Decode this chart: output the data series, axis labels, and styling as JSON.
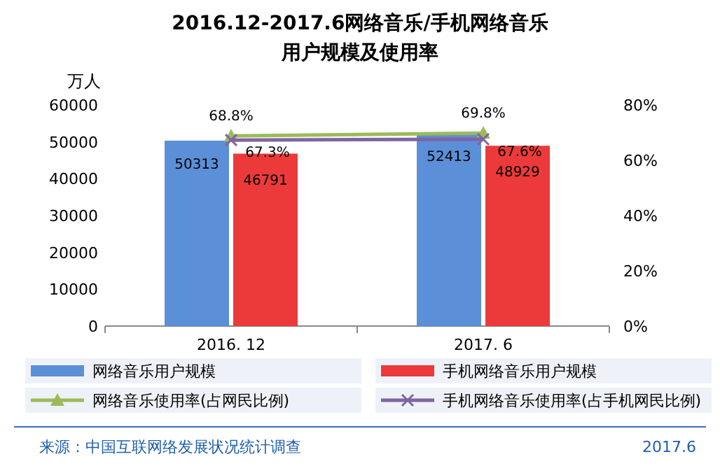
{
  "chart_data": {
    "type": "bar",
    "title": "2016.12-2017.6网络音乐/手机网络音乐",
    "subtitle": "用户规模及使用率",
    "ylabel": "万人",
    "categories": [
      "2016. 12",
      "2017. 6"
    ],
    "series": [
      {
        "name": "网络音乐用户规模",
        "color": "#5b8fd8",
        "values": [
          50313,
          52413
        ],
        "value_labels": [
          "50313",
          "52413"
        ]
      },
      {
        "name": "手机网络音乐用户规模",
        "color": "#ec3a3a",
        "values": [
          46791,
          48929
        ],
        "value_labels": [
          "46791",
          "48929"
        ]
      },
      {
        "name": "网络音乐使用率(占网民比例)",
        "type": "line",
        "axis": "y2",
        "marker": "triangle",
        "color": "#9bbb59",
        "values": [
          68.8,
          69.8
        ],
        "value_labels": [
          "68.8%",
          "69.8%"
        ]
      },
      {
        "name": "手机网络音乐使用率(占手机网民比例)",
        "type": "line",
        "axis": "y2",
        "marker": "cross",
        "color": "#8064a2",
        "values": [
          67.3,
          67.6
        ],
        "value_labels": [
          "67.3%",
          "67.6%"
        ]
      }
    ],
    "ylim": [
      0,
      60000
    ],
    "yticks": [
      0,
      10000,
      20000,
      30000,
      40000,
      50000,
      60000
    ],
    "y2lim": [
      0,
      80
    ],
    "y2ticks": [
      {
        "value": 0,
        "label": "0%"
      },
      {
        "value": 20,
        "label": "20%"
      },
      {
        "value": 40,
        "label": "40%"
      },
      {
        "value": 60,
        "label": "60%"
      },
      {
        "value": 80,
        "label": "80%"
      }
    ],
    "legend": "bottom",
    "annotations": [
      "来源：中国互联网络发展状况统计调查",
      "2017.6"
    ]
  }
}
